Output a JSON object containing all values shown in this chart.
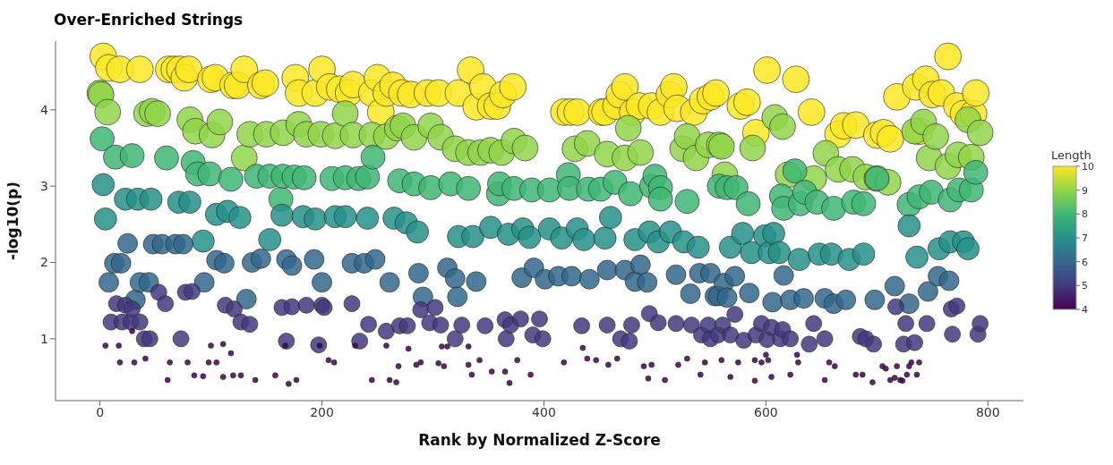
{
  "chart_data": {
    "type": "bubble",
    "title": "Over-Enriched Strings",
    "xlabel": "Rank by Normalized Z-Score",
    "ylabel": "-log10(p)",
    "clabel": "Length",
    "clim": [
      4,
      10
    ],
    "cticks": [
      4,
      5,
      6,
      7,
      8,
      9,
      10
    ],
    "xlim": [
      -40,
      832
    ],
    "xticks": [
      0,
      200,
      400,
      600,
      800
    ],
    "ylim": [
      0.19,
      4.9
    ],
    "yticks": [
      1,
      2,
      3,
      4
    ],
    "grid": false,
    "legend": false,
    "marker": "circle",
    "series": [
      {
        "x": [
          3,
          8,
          18,
          36,
          62,
          67,
          72,
          76,
          80,
          100,
          104,
          120,
          124,
          130,
          145,
          149,
          176,
          179,
          194,
          200,
          207,
          216,
          224,
          228,
          245,
          250,
          253,
          258,
          264,
          272,
          280,
          295,
          305,
          323,
          334,
          339,
          345,
          352,
          358,
          363,
          372,
          418,
          424,
          430,
          452,
          455,
          465,
          468,
          473,
          480,
          486,
          497,
          505,
          513,
          517,
          520,
          535,
          543,
          550,
          555,
          577,
          583,
          591,
          601,
          627,
          641,
          665,
          670,
          681,
          700,
          706,
          712,
          718,
          735,
          738,
          744,
          750,
          758,
          764,
          772,
          778,
          787,
          789
        ],
        "values": [
          4.7,
          4.55,
          4.53,
          4.53,
          4.53,
          4.53,
          4.53,
          4.42,
          4.53,
          4.4,
          4.42,
          4.32,
          4.32,
          4.53,
          4.32,
          4.35,
          4.42,
          4.22,
          4.22,
          4.53,
          4.3,
          4.27,
          4.22,
          4.33,
          4.22,
          4.42,
          3.97,
          4.22,
          4.32,
          4.22,
          4.2,
          4.22,
          4.22,
          4.22,
          4.52,
          4.04,
          4.3,
          4.05,
          4.05,
          4.2,
          4.3,
          3.97,
          3.97,
          3.97,
          3.97,
          3.97,
          4.05,
          4.2,
          4.3,
          3.97,
          4.05,
          4.05,
          3.97,
          4.2,
          4.3,
          4.02,
          3.97,
          4.12,
          4.17,
          4.22,
          4.05,
          4.1,
          3.7,
          4.52,
          4.4,
          3.97,
          3.68,
          3.79,
          3.8,
          3.67,
          3.7,
          3.62,
          4.17,
          4.3,
          3.72,
          4.4,
          4.2,
          4.22,
          4.7,
          4.05,
          3.95,
          3.95,
          4.22
        ],
        "cvalues": [
          10,
          10,
          10,
          10,
          10,
          10,
          10,
          10,
          10,
          10,
          10,
          10,
          10,
          10,
          10,
          10,
          10,
          10,
          10,
          10,
          10,
          10,
          10,
          10,
          10,
          10,
          10,
          10,
          10,
          10,
          10,
          10,
          10,
          10,
          10,
          10,
          10,
          10,
          10,
          10,
          10,
          10,
          10,
          10,
          10,
          10,
          10,
          10,
          10,
          10,
          10,
          10,
          10,
          10,
          10,
          10,
          10,
          10,
          10,
          10,
          10,
          10,
          10,
          10,
          10,
          10,
          10,
          10,
          10,
          10,
          10,
          10,
          10,
          10,
          10,
          10,
          10,
          10,
          10,
          10,
          10,
          10,
          10
        ],
        "sizes": [
          1,
          1,
          1,
          1,
          1,
          1,
          1,
          1,
          1,
          1,
          1,
          1,
          1,
          1,
          1,
          1,
          1,
          1,
          1,
          1,
          1,
          1,
          1,
          1,
          1,
          1,
          1,
          1,
          1,
          1,
          1,
          1,
          1,
          1,
          1,
          1,
          1,
          1,
          1,
          1,
          1,
          1,
          1,
          1,
          1,
          1,
          1,
          1,
          1,
          1,
          1,
          1,
          1,
          1,
          1,
          1,
          1,
          1,
          1,
          1,
          1,
          1,
          1,
          1,
          1,
          1,
          1,
          1,
          1,
          1,
          1,
          1,
          1,
          1,
          1,
          1,
          1,
          1,
          1,
          1,
          1,
          1,
          1
        ]
      },
      {
        "x": [
          0,
          1,
          7,
          42,
          47,
          52,
          81,
          86,
          101,
          108,
          130,
          135,
          150,
          165,
          179,
          186,
          199,
          212,
          221,
          228,
          245,
          258,
          268,
          273,
          283,
          298,
          307,
          320,
          332,
          343,
          352,
          362,
          373,
          383,
          428,
          439,
          457,
          473,
          476,
          487,
          525,
          529,
          537,
          548,
          558,
          560,
          563,
          588,
          608,
          615,
          620,
          643,
          654,
          665,
          678,
          690,
          700,
          710,
          734,
          742,
          747,
          753,
          764,
          773,
          782,
          785,
          793
        ],
        "values": [
          4.22,
          4.2,
          3.97,
          3.95,
          3.98,
          3.95,
          3.87,
          3.72,
          3.67,
          3.84,
          3.37,
          3.68,
          3.68,
          3.7,
          3.81,
          3.68,
          3.68,
          3.66,
          3.95,
          3.67,
          3.67,
          3.65,
          3.76,
          3.79,
          3.64,
          3.79,
          3.64,
          3.49,
          3.44,
          3.44,
          3.47,
          3.44,
          3.59,
          3.5,
          3.49,
          3.56,
          3.42,
          3.37,
          3.76,
          3.44,
          3.49,
          3.65,
          3.37,
          3.54,
          3.54,
          3.52,
          3.15,
          3.5,
          3.9,
          3.78,
          3.15,
          3.1,
          3.43,
          3.22,
          3.22,
          3.12,
          3.1,
          3.05,
          3.72,
          3.84,
          3.37,
          3.65,
          3.26,
          3.41,
          3.87,
          3.38,
          3.7
        ],
        "cvalues": [
          9,
          9,
          9,
          9,
          9,
          9,
          9,
          9,
          9,
          9,
          9,
          9,
          9,
          9,
          9,
          9,
          9,
          9,
          9,
          9,
          9,
          9,
          9,
          9,
          9,
          9,
          9,
          9,
          9,
          9,
          9,
          9,
          9,
          9,
          9,
          9,
          9,
          9,
          9,
          9,
          9,
          9,
          9,
          9,
          9,
          9,
          9,
          9,
          9,
          9,
          9,
          9,
          9,
          9,
          9,
          9,
          9,
          9,
          9,
          9,
          9,
          9,
          9,
          9,
          9,
          9,
          9
        ],
        "sizes": [
          0.93,
          0.93,
          0.93,
          0.93,
          0.93,
          0.93,
          0.93,
          0.93,
          0.93,
          0.93,
          0.93,
          0.93,
          0.93,
          0.93,
          0.93,
          0.93,
          0.93,
          0.93,
          0.93,
          0.93,
          0.93,
          0.93,
          0.93,
          0.93,
          0.93,
          0.93,
          0.93,
          0.93,
          0.93,
          0.93,
          0.93,
          0.93,
          0.93,
          0.93,
          0.93,
          0.93,
          0.93,
          0.93,
          0.93,
          0.93,
          0.93,
          0.93,
          0.93,
          0.93,
          0.93,
          0.93,
          0.93,
          0.93,
          0.93,
          0.93,
          0.93,
          0.93,
          0.93,
          0.93,
          0.93,
          0.93,
          0.93,
          0.93,
          0.93,
          0.93,
          0.93,
          0.93,
          0.93,
          0.93,
          0.93,
          0.93,
          0.93
        ]
      },
      {
        "x": [
          2,
          14,
          29,
          60,
          84,
          88,
          99,
          118,
          141,
          153,
          163,
          165,
          175,
          184,
          209,
          221,
          233,
          241,
          246,
          270,
          283,
          298,
          316,
          332,
          359,
          360,
          373,
          389,
          405,
          422,
          423,
          440,
          451,
          464,
          478,
          497,
          500,
          505,
          505,
          529,
          558,
          565,
          573,
          584,
          614,
          616,
          626,
          631,
          635,
          646,
          661,
          679,
          688,
          700,
          729,
          738,
          749,
          766,
          774,
          785,
          789
        ],
        "values": [
          3.62,
          3.38,
          3.4,
          3.37,
          3.31,
          3.16,
          3.16,
          3.09,
          3.13,
          3.13,
          2.83,
          3.13,
          3.12,
          3.11,
          3.1,
          3.11,
          3.1,
          3.12,
          3.38,
          3.07,
          3.03,
          2.98,
          3.03,
          2.97,
          2.9,
          3.03,
          2.97,
          2.95,
          2.95,
          3.15,
          2.97,
          2.96,
          2.96,
          3.05,
          2.9,
          3.0,
          3.13,
          2.98,
          2.83,
          2.8,
          3.0,
          2.98,
          2.98,
          2.77,
          2.87,
          2.71,
          3.2,
          2.77,
          2.92,
          2.79,
          2.71,
          2.79,
          2.77,
          3.1,
          2.76,
          2.86,
          2.92,
          2.82,
          2.95,
          2.95,
          3.18
        ],
        "cvalues": [
          8,
          8,
          8,
          8,
          8,
          8,
          8,
          8,
          8,
          8,
          8,
          8,
          8,
          8,
          8,
          8,
          8,
          8,
          8,
          8,
          8,
          8,
          8,
          8,
          8,
          8,
          8,
          8,
          8,
          8,
          8,
          8,
          8,
          8,
          8,
          8,
          8,
          8,
          8,
          8,
          8,
          8,
          8,
          8,
          8,
          8,
          8,
          8,
          8,
          8,
          8,
          8,
          8,
          8,
          8,
          8,
          8,
          8,
          8,
          8,
          8
        ],
        "sizes": [
          0.81,
          0.81,
          0.81,
          0.81,
          0.81,
          0.81,
          0.81,
          0.81,
          0.81,
          0.81,
          0.81,
          0.81,
          0.81,
          0.81,
          0.81,
          0.81,
          0.81,
          0.81,
          0.81,
          0.81,
          0.81,
          0.81,
          0.81,
          0.81,
          0.81,
          0.81,
          0.81,
          0.81,
          0.81,
          0.81,
          0.81,
          0.81,
          0.81,
          0.81,
          0.81,
          0.81,
          0.81,
          0.81,
          0.81,
          0.81,
          0.81,
          0.81,
          0.81,
          0.81,
          0.81,
          0.81,
          0.81,
          0.81,
          0.81,
          0.81,
          0.81,
          0.81,
          0.81,
          0.81,
          0.81,
          0.81,
          0.81,
          0.81,
          0.81,
          0.81,
          0.81
        ]
      },
      {
        "x": [
          3,
          5,
          23,
          34,
          46,
          71,
          81,
          93,
          105,
          115,
          126,
          153,
          164,
          183,
          194,
          212,
          221,
          241,
          265,
          276,
          286,
          323,
          336,
          352,
          368,
          381,
          387,
          405,
          416,
          430,
          436,
          455,
          460,
          482,
          495,
          503,
          514,
          526,
          539,
          568,
          579,
          587,
          599,
          603,
          607,
          612,
          630,
          648,
          659,
          675,
          688,
          729,
          736,
          756,
          766,
          778,
          782
        ],
        "values": [
          3.02,
          2.57,
          2.83,
          2.83,
          2.83,
          2.79,
          2.79,
          2.28,
          2.63,
          2.67,
          2.59,
          2.3,
          2.62,
          2.6,
          2.57,
          2.6,
          2.6,
          2.58,
          2.58,
          2.52,
          2.4,
          2.34,
          2.34,
          2.46,
          2.37,
          2.44,
          2.33,
          2.44,
          2.32,
          2.44,
          2.3,
          2.32,
          2.59,
          2.3,
          2.4,
          2.27,
          2.4,
          2.27,
          2.2,
          2.2,
          2.38,
          2.13,
          2.35,
          2.13,
          2.38,
          2.13,
          2.04,
          2.11,
          2.11,
          2.04,
          2.11,
          2.48,
          2.07,
          2.18,
          2.27,
          2.27,
          2.18
        ],
        "cvalues": [
          7,
          7,
          7,
          7,
          7,
          7,
          7,
          7,
          7,
          7,
          7,
          7,
          7,
          7,
          7,
          7,
          7,
          7,
          7,
          7,
          7,
          7,
          7,
          7,
          7,
          7,
          7,
          7,
          7,
          7,
          7,
          7,
          7,
          7,
          7,
          7,
          7,
          7,
          7,
          7,
          7,
          7,
          7,
          7,
          7,
          7,
          7,
          7,
          7,
          7,
          7,
          7,
          7,
          7,
          7,
          7,
          7
        ],
        "sizes": [
          0.69,
          0.69,
          0.69,
          0.69,
          0.69,
          0.69,
          0.69,
          0.69,
          0.69,
          0.69,
          0.69,
          0.69,
          0.69,
          0.69,
          0.69,
          0.69,
          0.69,
          0.69,
          0.69,
          0.69,
          0.69,
          0.69,
          0.69,
          0.69,
          0.69,
          0.69,
          0.69,
          0.69,
          0.69,
          0.69,
          0.69,
          0.69,
          0.69,
          0.69,
          0.69,
          0.69,
          0.69,
          0.69,
          0.69,
          0.69,
          0.69,
          0.69,
          0.69,
          0.69,
          0.69,
          0.69,
          0.69,
          0.69,
          0.69,
          0.69,
          0.69,
          0.69,
          0.69,
          0.69,
          0.69,
          0.69,
          0.69
        ]
      },
      {
        "x": [
          8,
          13,
          19,
          25,
          32,
          36,
          44,
          48,
          56,
          68,
          75,
          94,
          105,
          112,
          132,
          137,
          145,
          168,
          173,
          193,
          200,
          227,
          238,
          248,
          261,
          287,
          291,
          313,
          320,
          322,
          339,
          380,
          391,
          401,
          413,
          425,
          441,
          457,
          473,
          482,
          487,
          493,
          519,
          532,
          540,
          550,
          554,
          557,
          562,
          565,
          572,
          585,
          606,
          616,
          622,
          634,
          653,
          661,
          672,
          698,
          716,
          729,
          746,
          755,
          765
        ],
        "values": [
          1.74,
          1.99,
          1.99,
          2.25,
          1.51,
          1.74,
          1.74,
          2.24,
          2.24,
          2.24,
          2.24,
          1.74,
          2.03,
          1.99,
          1.52,
          2.0,
          2.05,
          2.04,
          1.96,
          2.04,
          1.74,
          1.99,
          1.99,
          2.04,
          1.74,
          1.86,
          1.55,
          1.93,
          1.79,
          1.55,
          1.75,
          1.8,
          1.93,
          1.78,
          1.82,
          1.82,
          1.78,
          1.9,
          1.9,
          1.75,
          1.97,
          1.74,
          1.84,
          1.59,
          1.86,
          1.86,
          1.56,
          1.56,
          1.73,
          1.54,
          1.82,
          1.6,
          1.48,
          1.83,
          1.51,
          1.53,
          1.53,
          1.46,
          1.51,
          1.51,
          1.69,
          1.46,
          1.62,
          1.82,
          1.76
        ],
        "cvalues": [
          6,
          6,
          6,
          6,
          6,
          6,
          6,
          6,
          6,
          6,
          6,
          6,
          6,
          6,
          6,
          6,
          6,
          6,
          6,
          6,
          6,
          6,
          6,
          6,
          6,
          6,
          6,
          6,
          6,
          6,
          6,
          6,
          6,
          6,
          6,
          6,
          6,
          6,
          6,
          6,
          6,
          6,
          6,
          6,
          6,
          6,
          6,
          6,
          6,
          6,
          6,
          6,
          6,
          6,
          6,
          6,
          6,
          6,
          6,
          6,
          6,
          6,
          6,
          6,
          6
        ],
        "sizes": [
          0.54,
          0.54,
          0.54,
          0.54,
          0.54,
          0.54,
          0.54,
          0.54,
          0.54,
          0.54,
          0.54,
          0.54,
          0.54,
          0.54,
          0.54,
          0.54,
          0.54,
          0.54,
          0.54,
          0.54,
          0.54,
          0.54,
          0.54,
          0.54,
          0.54,
          0.54,
          0.54,
          0.54,
          0.54,
          0.54,
          0.54,
          0.54,
          0.54,
          0.54,
          0.54,
          0.54,
          0.54,
          0.54,
          0.54,
          0.54,
          0.54,
          0.54,
          0.54,
          0.54,
          0.54,
          0.54,
          0.54,
          0.54,
          0.54,
          0.54,
          0.54,
          0.54,
          0.54,
          0.54,
          0.54,
          0.54,
          0.54,
          0.54,
          0.54,
          0.54,
          0.54,
          0.54,
          0.54,
          0.54,
          0.54
        ]
      },
      {
        "x": [
          10,
          15,
          20,
          23,
          28,
          29,
          36,
          40,
          45,
          53,
          59,
          73,
          77,
          83,
          113,
          121,
          127,
          135,
          164,
          168,
          173,
          186,
          197,
          200,
          202,
          227,
          234,
          242,
          258,
          270,
          277,
          289,
          297,
          302,
          307,
          320,
          326,
          347,
          365,
          366,
          370,
          379,
          390,
          396,
          399,
          434,
          457,
          469,
          477,
          479,
          495,
          503,
          519,
          533,
          542,
          548,
          550,
          557,
          561,
          568,
          572,
          580,
          591,
          596,
          601,
          605,
          613,
          615,
          622,
          639,
          643,
          653,
          685,
          690,
          697,
          717,
          724,
          726,
          734,
          745,
          767,
          768,
          772,
          791,
          793
        ],
        "values": [
          1.22,
          1.46,
          1.22,
          1.44,
          1.22,
          1.39,
          1.22,
          1.0,
          1.0,
          1.61,
          1.46,
          1.0,
          1.61,
          1.62,
          1.44,
          1.39,
          1.22,
          1.19,
          1.41,
          0.97,
          1.42,
          1.44,
          0.92,
          1.44,
          1.41,
          1.46,
          0.97,
          1.19,
          1.1,
          1.17,
          1.17,
          1.38,
          1.21,
          1.41,
          1.18,
          1.0,
          1.18,
          1.17,
          1.25,
          1.0,
          1.18,
          1.26,
          1.05,
          1.26,
          1.0,
          1.17,
          1.18,
          1.0,
          0.97,
          1.18,
          1.33,
          1.21,
          1.2,
          1.18,
          1.05,
          1.18,
          1.0,
          1.05,
          1.18,
          1.05,
          1.32,
          0.98,
          1.05,
          1.2,
          0.99,
          1.15,
          1.0,
          1.12,
          1.0,
          0.93,
          1.2,
          1.0,
          1.03,
          1.0,
          0.93,
          1.42,
          0.93,
          1.2,
          0.95,
          1.2,
          1.39,
          1.06,
          1.43,
          1.06,
          1.2
        ],
        "cvalues": [
          5,
          5,
          5,
          5,
          5,
          5,
          5,
          5,
          5,
          5,
          5,
          5,
          5,
          5,
          5,
          5,
          5,
          5,
          5,
          5,
          5,
          5,
          5,
          5,
          5,
          5,
          5,
          5,
          5,
          5,
          5,
          5,
          5,
          5,
          5,
          5,
          5,
          5,
          5,
          5,
          5,
          5,
          5,
          5,
          5,
          5,
          5,
          5,
          5,
          5,
          5,
          5,
          5,
          5,
          5,
          5,
          5,
          5,
          5,
          5,
          5,
          5,
          5,
          5,
          5,
          5,
          5,
          5,
          5,
          5,
          5,
          5,
          5,
          5,
          5,
          5,
          5,
          5,
          5,
          5,
          5,
          5,
          5,
          5,
          5
        ],
        "sizes": [
          0.36,
          0.36,
          0.36,
          0.36,
          0.36,
          0.36,
          0.36,
          0.36,
          0.36,
          0.36,
          0.36,
          0.36,
          0.36,
          0.36,
          0.36,
          0.36,
          0.36,
          0.36,
          0.36,
          0.36,
          0.36,
          0.36,
          0.36,
          0.36,
          0.36,
          0.36,
          0.36,
          0.36,
          0.36,
          0.36,
          0.36,
          0.36,
          0.36,
          0.36,
          0.36,
          0.36,
          0.36,
          0.36,
          0.36,
          0.36,
          0.36,
          0.36,
          0.36,
          0.36,
          0.36,
          0.36,
          0.36,
          0.36,
          0.36,
          0.36,
          0.36,
          0.36,
          0.36,
          0.36,
          0.36,
          0.36,
          0.36,
          0.36,
          0.36,
          0.36,
          0.36,
          0.36,
          0.36,
          0.36,
          0.36,
          0.36,
          0.36,
          0.36,
          0.36,
          0.36,
          0.36,
          0.36,
          0.36,
          0.36,
          0.36,
          0.36,
          0.36,
          0.36,
          0.36,
          0.36,
          0.36,
          0.36,
          0.36,
          0.36,
          0.36
        ]
      },
      {
        "x": [
          5,
          17,
          18,
          29,
          31,
          41,
          61,
          63,
          79,
          85,
          93,
          98,
          100,
          105,
          111,
          111,
          118,
          120,
          127,
          140,
          158,
          167,
          170,
          177,
          198,
          206,
          211,
          230,
          245,
          258,
          261,
          267,
          269,
          278,
          285,
          289,
          305,
          308,
          310,
          313,
          332,
          332,
          335,
          342,
          353,
          365,
          369,
          376,
          388,
          418,
          435,
          439,
          447,
          458,
          466,
          490,
          494,
          497,
          509,
          521,
          529,
          541,
          545,
          560,
          568,
          575,
          590,
          590,
          596,
          600,
          602,
          605,
          622,
          628,
          629,
          653,
          657,
          662,
          681,
          687,
          696,
          705,
          708,
          712,
          716,
          718,
          721,
          723,
          727,
          729,
          731,
          736,
          738
        ],
        "values": [
          0.91,
          0.91,
          0.69,
          1.1,
          0.69,
          0.74,
          0.46,
          0.69,
          0.69,
          0.52,
          0.51,
          0.69,
          0.91,
          0.69,
          0.93,
          0.5,
          0.81,
          0.52,
          0.52,
          0.46,
          0.52,
          0.91,
          0.41,
          0.46,
          0.91,
          0.72,
          0.69,
          0.91,
          0.46,
          0.91,
          0.46,
          0.43,
          0.64,
          0.87,
          0.66,
          0.69,
          0.68,
          0.9,
          0.64,
          0.9,
          0.9,
          0.66,
          0.53,
          0.72,
          0.57,
          0.57,
          0.42,
          0.72,
          0.53,
          0.69,
          0.88,
          0.74,
          0.72,
          0.66,
          0.74,
          0.64,
          0.48,
          0.66,
          0.46,
          0.66,
          0.74,
          0.53,
          0.69,
          0.72,
          0.5,
          0.69,
          0.72,
          0.45,
          0.69,
          0.79,
          0.72,
          0.5,
          0.53,
          0.79,
          0.69,
          0.46,
          0.69,
          0.64,
          0.53,
          0.53,
          0.43,
          0.64,
          0.61,
          0.46,
          0.49,
          0.64,
          0.46,
          0.45,
          0.53,
          0.64,
          0.69,
          0.53,
          0.69
        ],
        "cvalues": [
          4,
          4,
          4,
          4,
          4,
          4,
          4,
          4,
          4,
          4,
          4,
          4,
          4,
          4,
          4,
          4,
          4,
          4,
          4,
          4,
          4,
          4,
          4,
          4,
          4,
          4,
          4,
          4,
          4,
          4,
          4,
          4,
          4,
          4,
          4,
          4,
          4,
          4,
          4,
          4,
          4,
          4,
          4,
          4,
          4,
          4,
          4,
          4,
          4,
          4,
          4,
          4,
          4,
          4,
          4,
          4,
          4,
          4,
          4,
          4,
          4,
          4,
          4,
          4,
          4,
          4,
          4,
          4,
          4,
          4,
          4,
          4,
          4,
          4,
          4,
          4,
          4,
          4,
          4,
          4,
          4,
          4,
          4,
          4,
          4,
          4,
          4,
          4,
          4,
          4,
          4,
          4,
          4
        ],
        "sizes": [
          0.04,
          0.04,
          0.04,
          0.04,
          0.04,
          0.04,
          0.04,
          0.04,
          0.04,
          0.04,
          0.04,
          0.04,
          0.04,
          0.04,
          0.04,
          0.04,
          0.04,
          0.04,
          0.04,
          0.04,
          0.04,
          0.04,
          0.04,
          0.04,
          0.04,
          0.04,
          0.04,
          0.04,
          0.04,
          0.04,
          0.04,
          0.04,
          0.04,
          0.04,
          0.04,
          0.04,
          0.04,
          0.04,
          0.04,
          0.04,
          0.04,
          0.04,
          0.04,
          0.04,
          0.04,
          0.04,
          0.04,
          0.04,
          0.04,
          0.04,
          0.04,
          0.04,
          0.04,
          0.04,
          0.04,
          0.04,
          0.04,
          0.04,
          0.04,
          0.04,
          0.04,
          0.04,
          0.04,
          0.04,
          0.04,
          0.04,
          0.04,
          0.04,
          0.04,
          0.04,
          0.04,
          0.04,
          0.04,
          0.04,
          0.04,
          0.04,
          0.04,
          0.04,
          0.04,
          0.04,
          0.04,
          0.04,
          0.04,
          0.04,
          0.04,
          0.04,
          0.04,
          0.04,
          0.04,
          0.04,
          0.04,
          0.04,
          0.04
        ]
      }
    ]
  }
}
